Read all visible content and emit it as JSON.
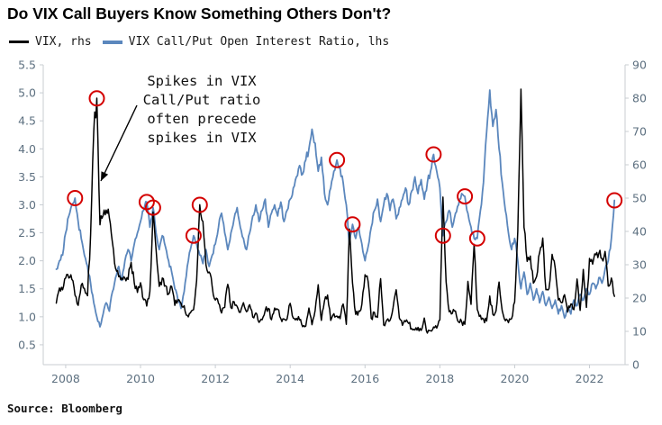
{
  "title": "Do VIX Call Buyers Know Something Others Don't?",
  "legend": [
    {
      "label": "VIX, rhs",
      "color": "#000000"
    },
    {
      "label": "VIX Call/Put Open Interest Ratio, lhs",
      "color": "#5b87bd"
    }
  ],
  "annotation": {
    "lines": [
      "Spikes in VIX",
      "Call/Put ratio",
      "often precede",
      "spikes in VIX"
    ]
  },
  "source": "Source: Bloomberg",
  "colors": {
    "vix_line": "#000000",
    "ratio_line": "#5b87bd",
    "marker": "#d40000",
    "axis": "#c8cdd2",
    "tick_text": "#5d7080"
  },
  "chart_data": {
    "type": "line",
    "title": "Do VIX Call Buyers Know Something Others Don't?",
    "x_axis": {
      "ticks": [
        2008,
        2010,
        2012,
        2014,
        2016,
        2018,
        2020,
        2022
      ],
      "range": [
        2007.4,
        2022.95
      ]
    },
    "lhs_axis": {
      "label": "VIX Call/Put Open Interest Ratio",
      "ticks": [
        0.5,
        1.0,
        1.5,
        2.0,
        2.5,
        3.0,
        3.5,
        4.0,
        4.5,
        5.0,
        5.5
      ],
      "range": [
        0.145,
        5.5
      ]
    },
    "rhs_axis": {
      "label": "VIX",
      "ticks": [
        0,
        10,
        20,
        30,
        40,
        50,
        60,
        70,
        80,
        90
      ],
      "range": [
        0,
        90
      ]
    },
    "grid": false,
    "legend_position": "top-left",
    "x_start": 2007.75,
    "x_step": 0.0833333,
    "series": [
      {
        "name": "VIX, rhs",
        "axis": "rhs",
        "color": "#000000",
        "values": [
          18.5,
          23.0,
          22.5,
          26.0,
          26.0,
          25.6,
          20.8,
          17.8,
          23.9,
          22.9,
          20.7,
          39.0,
          70.0,
          80.0,
          42.0,
          44.8,
          46.4,
          44.1,
          36.5,
          28.9,
          26.4,
          26.0,
          26.0,
          25.6,
          30.7,
          24.5,
          21.7,
          24.6,
          19.5,
          17.6,
          22.0,
          45.8,
          34.5,
          23.5,
          26.0,
          23.7,
          21.2,
          23.5,
          17.8,
          19.5,
          18.4,
          17.7,
          14.8,
          15.5,
          16.5,
          25.2,
          48.0,
          43.0,
          29.9,
          27.8,
          23.4,
          19.4,
          18.4,
          15.5,
          17.2,
          24.1,
          17.1,
          18.9,
          17.5,
          15.7,
          18.6,
          15.9,
          18.0,
          14.3,
          15.5,
          12.7,
          13.5,
          16.3,
          16.9,
          13.5,
          17.0,
          16.6,
          13.8,
          13.7,
          13.7,
          18.4,
          14.0,
          13.9,
          13.4,
          11.4,
          11.6,
          17.0,
          12.0,
          16.3,
          24.0,
          13.3,
          19.2,
          20.9,
          13.3,
          15.3,
          14.6,
          13.8,
          18.2,
          12.1,
          40.7,
          24.5,
          15.1,
          16.1,
          18.2,
          27.0,
          25.0,
          13.9,
          15.7,
          14.2,
          25.8,
          11.9,
          13.4,
          13.3,
          17.1,
          22.5,
          14.0,
          11.8,
          12.9,
          12.4,
          10.8,
          10.4,
          11.2,
          10.3,
          14.0,
          9.5,
          10.2,
          11.3,
          11.0,
          13.5,
          50.3,
          24.9,
          15.9,
          15.4,
          16.1,
          12.8,
          12.9,
          12.1,
          25.0,
          18.1,
          36.1,
          16.6,
          14.8,
          13.7,
          13.1,
          20.6,
          15.1,
          16.1,
          24.8,
          16.2,
          13.2,
          12.6,
          13.8,
          18.8,
          40.1,
          82.7,
          41.2,
          31.0,
          32.6,
          24.5,
          26.4,
          33.6,
          38.0,
          22.5,
          22.8,
          33.1,
          28.9,
          19.4,
          18.6,
          21.0,
          15.8,
          18.2,
          16.5,
          25.7,
          16.3,
          28.6,
          17.2,
          31.9,
          30.2,
          33.0,
          33.4,
          31.8,
          34.0,
          23.6,
          26.0,
          20.5
        ]
      },
      {
        "name": "VIX Call/Put Open Interest Ratio, lhs",
        "axis": "lhs",
        "color": "#5b87bd",
        "values": [
          1.85,
          2.0,
          2.1,
          2.5,
          2.8,
          3.0,
          3.12,
          2.7,
          2.4,
          2.1,
          1.9,
          1.6,
          1.25,
          1.0,
          0.82,
          1.05,
          1.25,
          1.1,
          1.45,
          1.7,
          1.9,
          1.65,
          2.0,
          2.2,
          2.0,
          2.3,
          2.5,
          2.7,
          2.9,
          3.05,
          2.6,
          2.95,
          2.5,
          2.2,
          2.45,
          2.25,
          2.0,
          1.8,
          1.5,
          1.3,
          1.15,
          1.45,
          1.9,
          2.2,
          2.45,
          2.3,
          2.1,
          1.95,
          2.2,
          1.9,
          2.1,
          2.3,
          2.6,
          2.85,
          2.5,
          2.2,
          2.5,
          2.75,
          2.95,
          2.6,
          2.4,
          2.2,
          2.5,
          2.8,
          3.0,
          2.7,
          2.9,
          3.1,
          2.6,
          2.85,
          3.0,
          2.8,
          3.05,
          2.7,
          2.9,
          3.1,
          3.3,
          3.5,
          3.7,
          3.55,
          3.8,
          4.0,
          4.35,
          4.1,
          3.6,
          3.85,
          3.2,
          3.0,
          3.3,
          3.6,
          3.8,
          3.65,
          3.4,
          3.0,
          2.3,
          2.65,
          2.4,
          2.6,
          2.3,
          2.0,
          2.25,
          2.6,
          2.9,
          3.1,
          2.7,
          3.0,
          3.2,
          2.9,
          3.1,
          2.75,
          2.95,
          3.1,
          3.3,
          3.0,
          3.25,
          3.5,
          3.2,
          3.45,
          3.1,
          3.4,
          3.6,
          3.9,
          3.6,
          3.3,
          2.45,
          2.7,
          2.9,
          2.6,
          2.85,
          3.0,
          3.2,
          3.15,
          2.85,
          2.6,
          2.4,
          2.4,
          2.9,
          3.4,
          4.3,
          5.05,
          4.4,
          4.7,
          4.0,
          3.4,
          2.9,
          2.5,
          2.2,
          2.4,
          2.0,
          1.5,
          1.8,
          1.4,
          1.6,
          1.3,
          1.5,
          1.25,
          1.45,
          1.2,
          1.35,
          1.15,
          1.3,
          1.05,
          1.2,
          0.98,
          1.15,
          1.05,
          1.3,
          1.2,
          1.4,
          1.3,
          1.5,
          1.4,
          1.6,
          1.5,
          1.7,
          1.6,
          1.85,
          2.0,
          2.4,
          3.08
        ]
      }
    ],
    "markers": [
      {
        "x": 2008.25,
        "y_lhs": 3.12,
        "on": "ratio"
      },
      {
        "x": 2008.8333,
        "y_lhs": 4.9,
        "on": "vix"
      },
      {
        "x": 2010.1667,
        "y_lhs": 3.05,
        "on": "ratio"
      },
      {
        "x": 2010.3333,
        "y_lhs": 2.95,
        "on": "ratio"
      },
      {
        "x": 2011.4167,
        "y_lhs": 2.45,
        "on": "ratio"
      },
      {
        "x": 2011.5833,
        "y_lhs": 3.0,
        "on": "vix"
      },
      {
        "x": 2015.25,
        "y_lhs": 3.8,
        "on": "ratio"
      },
      {
        "x": 2015.6667,
        "y_lhs": 2.65,
        "on": "ratio"
      },
      {
        "x": 2017.8333,
        "y_lhs": 3.9,
        "on": "ratio"
      },
      {
        "x": 2018.0833,
        "y_lhs": 2.45,
        "on": "ratio"
      },
      {
        "x": 2018.6667,
        "y_lhs": 3.15,
        "on": "ratio"
      },
      {
        "x": 2019.0,
        "y_lhs": 2.4,
        "on": "ratio"
      },
      {
        "x": 2022.6667,
        "y_lhs": 3.08,
        "on": "ratio"
      }
    ]
  }
}
